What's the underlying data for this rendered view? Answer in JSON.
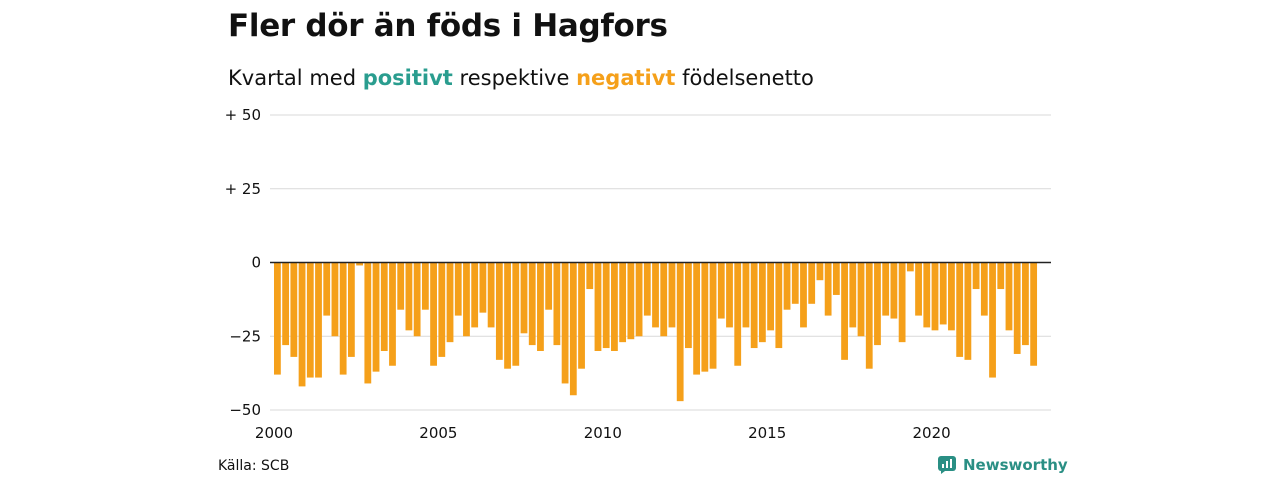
{
  "title": "Fler dör än föds i Hagfors",
  "subtitle": {
    "prefix": "Kvartal med",
    "positive": "positivt",
    "middle": "respektive",
    "negative": "negativt",
    "suffix": "födelsenetto"
  },
  "source": "Källa: SCB",
  "brand": "Newsworthy",
  "colors": {
    "positive": "#2a9d8f",
    "negative": "#f5a01a",
    "grid": "#d9d9d9",
    "zero_line": "#222222",
    "brand": "#2a8f84"
  },
  "chart_data": {
    "type": "bar",
    "x_start": "2000 Q1",
    "frequency": "quarterly",
    "x_ticks": [
      "2000",
      "2005",
      "2010",
      "2015",
      "2020"
    ],
    "y_ticks": [
      {
        "value": 50,
        "label": "+ 50"
      },
      {
        "value": 25,
        "label": "+ 25"
      },
      {
        "value": 0,
        "label": "0"
      },
      {
        "value": -25,
        "label": "−25"
      },
      {
        "value": -50,
        "label": "−50"
      }
    ],
    "ylim": [
      -50,
      50
    ],
    "grid": true,
    "values": [
      -38,
      -28,
      -32,
      -42,
      -39,
      -39,
      -18,
      -25,
      -38,
      -32,
      -1,
      -41,
      -37,
      -30,
      -35,
      -16,
      -23,
      -25,
      -16,
      -35,
      -32,
      -27,
      -18,
      -25,
      -22,
      -17,
      -22,
      -33,
      -36,
      -35,
      -24,
      -28,
      -30,
      -16,
      -28,
      -41,
      -45,
      -36,
      -9,
      -30,
      -29,
      -30,
      -27,
      -26,
      -25,
      -18,
      -22,
      -25,
      -22,
      -47,
      -29,
      -38,
      -37,
      -36,
      -19,
      -22,
      -35,
      -22,
      -29,
      -27,
      -23,
      -29,
      -16,
      -14,
      -22,
      -14,
      -6,
      -18,
      -11,
      -33,
      -22,
      -25,
      -36,
      -28,
      -18,
      -19,
      -27,
      -3,
      -18,
      -22,
      -23,
      -21,
      -23,
      -32,
      -33,
      -9,
      -18,
      -39,
      -9,
      -23,
      -31,
      -28,
      -35
    ]
  }
}
